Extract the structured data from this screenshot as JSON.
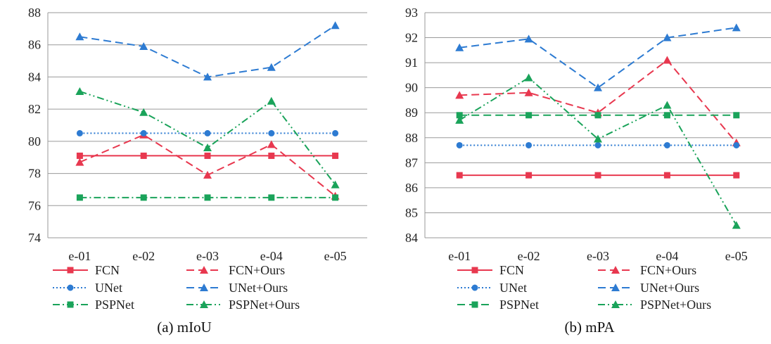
{
  "chart_data": [
    {
      "type": "line",
      "categories": [
        "e-01",
        "e-02",
        "e-03",
        "e-04",
        "e-05"
      ],
      "ylim": [
        74,
        88
      ],
      "yticks": [
        74,
        76,
        78,
        80,
        82,
        84,
        86,
        88
      ],
      "grid": true,
      "caption": "(a) mIoU",
      "series": [
        {
          "name": "FCN",
          "values": [
            79.1,
            79.1,
            79.1,
            79.1,
            79.1
          ],
          "color": "#e8384f",
          "dash": "solid",
          "marker": "square"
        },
        {
          "name": "FCN+Ours",
          "values": [
            78.7,
            80.4,
            77.9,
            79.8,
            76.6
          ],
          "color": "#e8384f",
          "dash": "dashed",
          "marker": "triangle"
        },
        {
          "name": "UNet",
          "values": [
            80.5,
            80.5,
            80.5,
            80.5,
            80.5
          ],
          "color": "#2d7bd2",
          "dash": "dotted",
          "marker": "circle"
        },
        {
          "name": "UNet+Ours",
          "values": [
            86.5,
            85.9,
            84.0,
            84.6,
            87.2
          ],
          "color": "#2d7bd2",
          "dash": "dashed",
          "marker": "triangle"
        },
        {
          "name": "PSPNet",
          "values": [
            76.5,
            76.5,
            76.5,
            76.5,
            76.5
          ],
          "color": "#1aa35a",
          "dash": "dashdot",
          "marker": "square"
        },
        {
          "name": "PSPNet+Ours",
          "values": [
            83.1,
            81.8,
            79.6,
            82.5,
            77.3
          ],
          "color": "#1aa35a",
          "dash": "dashdotdot",
          "marker": "triangle"
        }
      ]
    },
    {
      "type": "line",
      "categories": [
        "e-01",
        "e-02",
        "e-03",
        "e-04",
        "e-05"
      ],
      "ylim": [
        84,
        93
      ],
      "yticks": [
        84,
        85,
        86,
        87,
        88,
        89,
        90,
        91,
        92,
        93
      ],
      "grid": true,
      "caption": "(b) mPA",
      "series": [
        {
          "name": "FCN",
          "values": [
            86.5,
            86.5,
            86.5,
            86.5,
            86.5
          ],
          "color": "#e8384f",
          "dash": "solid",
          "marker": "square"
        },
        {
          "name": "FCN+Ours",
          "values": [
            89.7,
            89.8,
            89.0,
            91.1,
            87.8
          ],
          "color": "#e8384f",
          "dash": "dashed",
          "marker": "triangle"
        },
        {
          "name": "UNet",
          "values": [
            87.7,
            87.7,
            87.7,
            87.7,
            87.7
          ],
          "color": "#2d7bd2",
          "dash": "dotted",
          "marker": "circle"
        },
        {
          "name": "UNet+Ours",
          "values": [
            91.6,
            91.95,
            90.0,
            92.0,
            92.4
          ],
          "color": "#2d7bd2",
          "dash": "dashed",
          "marker": "triangle"
        },
        {
          "name": "PSPNet",
          "values": [
            88.9,
            88.9,
            88.9,
            88.9,
            88.9
          ],
          "color": "#1aa35a",
          "dash": "dashed",
          "marker": "square"
        },
        {
          "name": "PSPNet+Ours",
          "values": [
            88.7,
            90.4,
            87.95,
            89.3,
            84.5
          ],
          "color": "#1aa35a",
          "dash": "dashdotdot",
          "marker": "triangle"
        }
      ]
    }
  ]
}
